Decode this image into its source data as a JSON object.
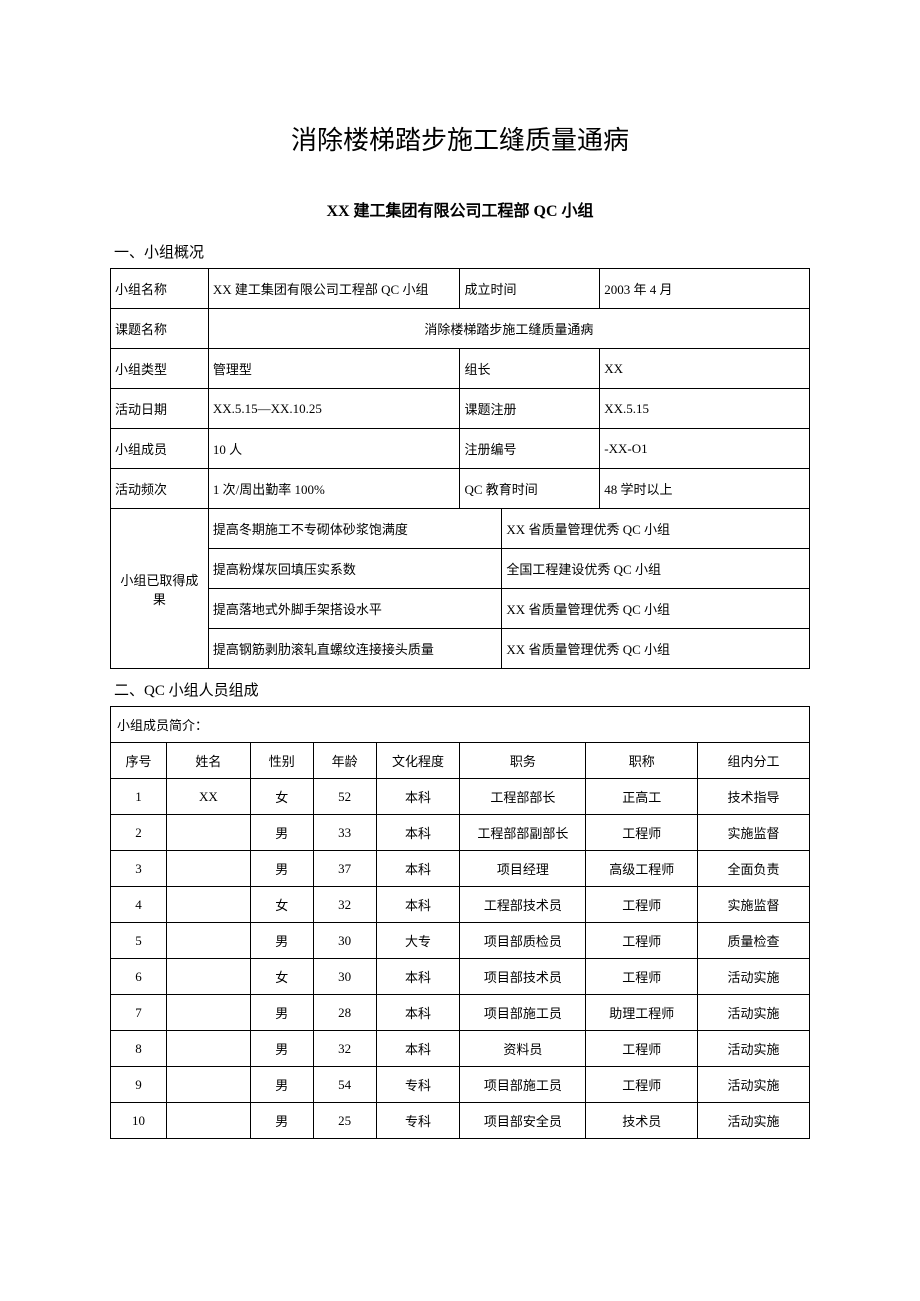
{
  "title": "消除楼梯踏步施工缝质量通病",
  "subtitle": "XX 建工集团有限公司工程部 QC 小组",
  "section1_header": "一、小组概况",
  "section2_header": "二、QC 小组人员组成",
  "table1": {
    "labels": {
      "group_name": "小组名称",
      "establish_time": "成立时间",
      "topic_name": "课题名称",
      "group_type": "小组类型",
      "leader": "组长",
      "activity_date": "活动日期",
      "topic_reg": "课题注册",
      "members": "小组成员",
      "reg_no": "注册编号",
      "frequency": "活动频次",
      "qc_edu": "QC 教育时间",
      "achievements": "小组已取得成果"
    },
    "values": {
      "group_name": "XX 建工集团有限公司工程部 QC 小组",
      "establish_time": "2003 年 4 月",
      "topic_name": "消除楼梯踏步施工缝质量通病",
      "group_type": "管理型",
      "leader": "XX",
      "activity_date": "XX.5.15—XX.10.25",
      "topic_reg": "XX.5.15",
      "members": "10 人",
      "reg_no": "-XX-O1",
      "frequency": "1 次/周出勤率 100%",
      "qc_edu": "48 学时以上"
    },
    "achievements": [
      {
        "item": "提高冬期施工不专砌体砂浆饱满度",
        "award": "XX 省质量管理优秀 QC 小组"
      },
      {
        "item": "提高粉煤灰回填压实系数",
        "award": "全国工程建设优秀 QC 小组"
      },
      {
        "item": "提高落地式外脚手架搭设水平",
        "award": "XX 省质量管理优秀 QC 小组"
      },
      {
        "item": "提高钢筋剥肋滚轧直螺纹连接接头质量",
        "award": "XX 省质量管理优秀 QC 小组"
      }
    ]
  },
  "table2": {
    "intro": "小组成员简介：",
    "headers": [
      "序号",
      "姓名",
      "性别",
      "年龄",
      "文化程度",
      "职务",
      "职称",
      "组内分工"
    ],
    "rows": [
      [
        "1",
        "XX",
        "女",
        "52",
        "本科",
        "工程部部长",
        "正高工",
        "技术指导"
      ],
      [
        "2",
        "",
        "男",
        "33",
        "本科",
        "工程部部副部长",
        "工程师",
        "实施监督"
      ],
      [
        "3",
        "",
        "男",
        "37",
        "本科",
        "项目经理",
        "高级工程师",
        "全面负责"
      ],
      [
        "4",
        "",
        "女",
        "32",
        "本科",
        "工程部技术员",
        "工程师",
        "实施监督"
      ],
      [
        "5",
        "",
        "男",
        "30",
        "大专",
        "项目部质检员",
        "工程师",
        "质量检查"
      ],
      [
        "6",
        "",
        "女",
        "30",
        "本科",
        "项目部技术员",
        "工程师",
        "活动实施"
      ],
      [
        "7",
        "",
        "男",
        "28",
        "本科",
        "项目部施工员",
        "助理工程师",
        "活动实施"
      ],
      [
        "8",
        "",
        "男",
        "32",
        "本科",
        "资料员",
        "工程师",
        "活动实施"
      ],
      [
        "9",
        "",
        "男",
        "54",
        "专科",
        "项目部施工员",
        "工程师",
        "活动实施"
      ],
      [
        "10",
        "",
        "男",
        "25",
        "专科",
        "项目部安全员",
        "技术员",
        "活动实施"
      ]
    ],
    "col_widths": [
      "8%",
      "12%",
      "9%",
      "9%",
      "12%",
      "18%",
      "16%",
      "16%"
    ]
  },
  "colors": {
    "text": "#000000",
    "background": "#ffffff",
    "border": "#000000"
  }
}
